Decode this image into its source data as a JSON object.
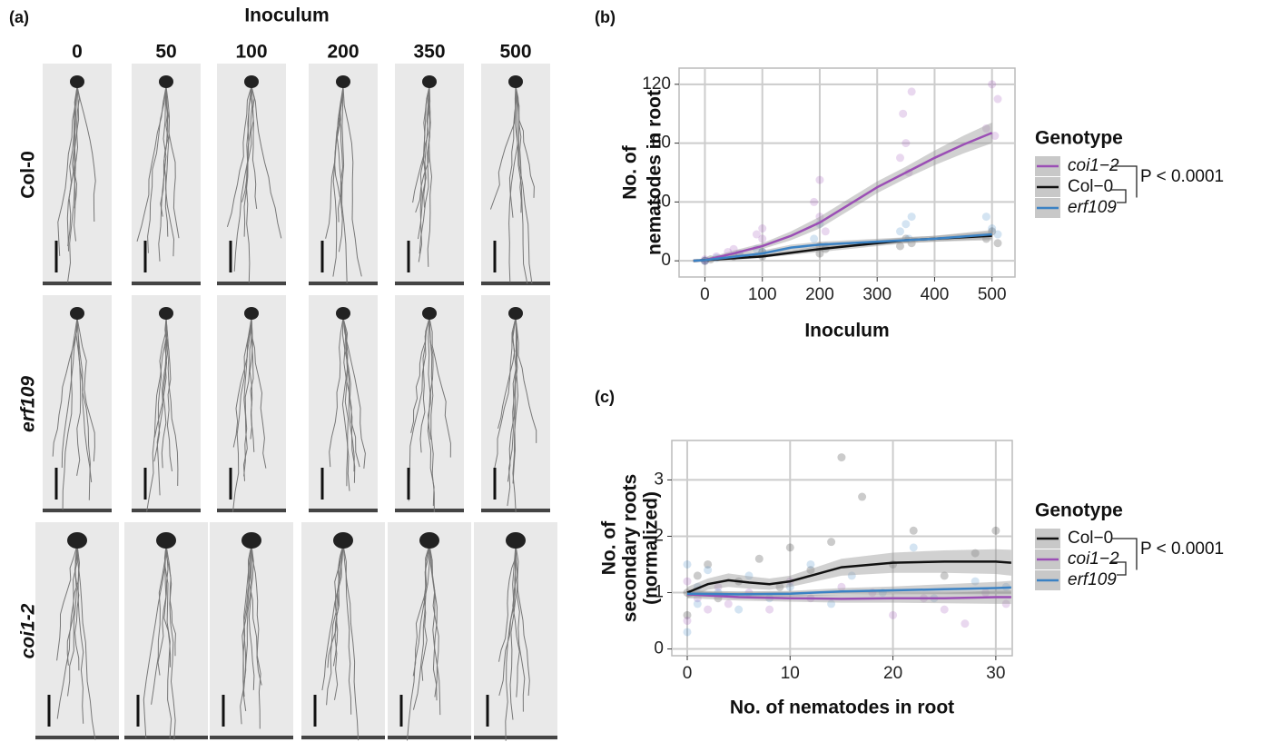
{
  "panel_a": {
    "panel_label": "(a)",
    "column_title": "Inoculum",
    "columns": [
      "0",
      "50",
      "100",
      "200",
      "350",
      "500"
    ],
    "rows": [
      "Col-0",
      "erf109",
      "coi1-2"
    ]
  },
  "chart_data": [
    {
      "type": "line",
      "panel_label": "(b)",
      "x_label": "Inoculum",
      "y_label": [
        "No. of",
        "nematodes in root"
      ],
      "xlim": [
        -45,
        540
      ],
      "xticks": [
        0,
        100,
        200,
        300,
        400,
        500
      ],
      "ylim": [
        -11,
        131
      ],
      "yticks": [
        0,
        40,
        80,
        120
      ],
      "grid": true,
      "legend_title": "Genotype",
      "annotations": [
        "P < 0.0001"
      ],
      "series": [
        {
          "name": "coi1−2",
          "color": "#9b4fb5",
          "italic": true,
          "x": [
            -20,
            0,
            50,
            100,
            150,
            200,
            250,
            300,
            350,
            400,
            450,
            500
          ],
          "values": [
            0,
            0.5,
            5,
            10,
            17,
            26,
            38,
            50,
            60,
            70,
            79,
            87
          ],
          "ci_lower": [
            -1,
            -0.5,
            3,
            8,
            14,
            22,
            34,
            46,
            56,
            65,
            73,
            80
          ],
          "ci_upper": [
            1,
            1.5,
            7,
            12,
            20,
            30,
            42,
            54,
            64,
            75,
            85,
            94
          ],
          "points": {
            "x": [
              0,
              0,
              20,
              40,
              50,
              60,
              90,
              100,
              100,
              190,
              200,
              200,
              210,
              340,
              345,
              350,
              355,
              360,
              490,
              500,
              505,
              510
            ],
            "y": [
              0,
              1,
              3,
              6,
              8,
              5,
              18,
              15,
              22,
              40,
              55,
              30,
              20,
              70,
              100,
              80,
              60,
              115,
              90,
              120,
              85,
              110
            ]
          }
        },
        {
          "name": "Col−0",
          "color": "#111111",
          "italic": false,
          "x": [
            -20,
            0,
            100,
            200,
            300,
            350,
            400,
            500
          ],
          "values": [
            0,
            0.5,
            3,
            8,
            12,
            14,
            15,
            17
          ],
          "ci_lower": [
            -1,
            -0.5,
            2,
            6,
            10,
            12,
            13,
            14
          ],
          "ci_upper": [
            1,
            1.5,
            4,
            10,
            14,
            16,
            17,
            20
          ],
          "points": {
            "x": [
              0,
              10,
              50,
              100,
              100,
              200,
              200,
              210,
              340,
              350,
              360,
              490,
              500,
              510
            ],
            "y": [
              0,
              1,
              3,
              3,
              6,
              5,
              10,
              8,
              10,
              15,
              12,
              15,
              20,
              12
            ]
          }
        },
        {
          "name": "erf109",
          "color": "#3b82c4",
          "italic": true,
          "x": [
            -20,
            0,
            100,
            150,
            200,
            300,
            350,
            400,
            500
          ],
          "values": [
            0,
            0.5,
            5,
            9,
            11,
            13,
            14,
            15,
            18
          ],
          "ci_lower": [
            -1,
            -0.5,
            3,
            7,
            9,
            11,
            12,
            13,
            15
          ],
          "ci_upper": [
            1,
            1.5,
            7,
            11,
            13,
            15,
            16,
            17,
            21
          ],
          "points": {
            "x": [
              0,
              20,
              60,
              90,
              100,
              190,
              200,
              210,
              340,
              350,
              355,
              360,
              490,
              500,
              510
            ],
            "y": [
              0,
              2,
              4,
              8,
              6,
              15,
              25,
              10,
              20,
              25,
              15,
              30,
              30,
              22,
              18
            ]
          }
        }
      ]
    },
    {
      "type": "line",
      "panel_label": "(c)",
      "x_label": "No. of nematodes in root",
      "y_label": [
        "No. of",
        "secondary roots",
        "(normalized)"
      ],
      "xlim": [
        -1.5,
        31.6
      ],
      "xticks": [
        0,
        10,
        20,
        30
      ],
      "ylim": [
        -0.12,
        3.7
      ],
      "yticks": [
        0,
        1,
        2,
        3
      ],
      "grid": true,
      "legend_title": "Genotype",
      "annotations": [
        "P < 0.0001"
      ],
      "series": [
        {
          "name": "Col−0",
          "color": "#111111",
          "italic": false,
          "x": [
            0,
            2,
            4,
            6,
            8,
            10,
            12,
            15,
            20,
            25,
            30,
            31.5
          ],
          "values": [
            1.0,
            1.15,
            1.22,
            1.18,
            1.15,
            1.2,
            1.3,
            1.45,
            1.53,
            1.55,
            1.55,
            1.53
          ],
          "ci_lower": [
            0.9,
            1.05,
            1.1,
            1.07,
            1.05,
            1.1,
            1.18,
            1.3,
            1.35,
            1.35,
            1.33,
            1.3
          ],
          "ci_upper": [
            1.1,
            1.25,
            1.34,
            1.29,
            1.25,
            1.3,
            1.42,
            1.6,
            1.71,
            1.75,
            1.77,
            1.76
          ],
          "points": {
            "x": [
              0,
              0,
              1,
              2,
              3,
              5,
              7,
              9,
              10,
              12,
              14,
              15,
              17,
              20,
              22,
              25,
              28,
              30
            ],
            "y": [
              1,
              0.6,
              1.3,
              1.5,
              0.9,
              1.2,
              1.6,
              1.1,
              1.8,
              1.4,
              1.9,
              3.4,
              2.7,
              1.5,
              2.1,
              1.3,
              1.7,
              2.1
            ]
          }
        },
        {
          "name": "coi1−2",
          "color": "#9b4fb5",
          "italic": true,
          "x": [
            0,
            5,
            10,
            15,
            20,
            25,
            30,
            31.5
          ],
          "values": [
            0.97,
            0.92,
            0.9,
            0.89,
            0.9,
            0.9,
            0.92,
            0.92
          ],
          "ci_lower": [
            0.9,
            0.86,
            0.84,
            0.82,
            0.82,
            0.81,
            0.8,
            0.8
          ],
          "ci_upper": [
            1.04,
            0.98,
            0.96,
            0.96,
            0.98,
            0.99,
            1.04,
            1.04
          ],
          "points": {
            "x": [
              0,
              0,
              1,
              2,
              3,
              4,
              6,
              8,
              10,
              12,
              15,
              18,
              20,
              23,
              25,
              27,
              29,
              31
            ],
            "y": [
              1.2,
              0.5,
              0.9,
              0.7,
              1.1,
              0.8,
              1.0,
              0.7,
              1.2,
              0.9,
              1.1,
              1.0,
              0.6,
              0.9,
              0.7,
              0.45,
              1.0,
              0.8
            ]
          }
        },
        {
          "name": "erf109",
          "color": "#3b82c4",
          "italic": true,
          "x": [
            0,
            5,
            10,
            15,
            20,
            25,
            30,
            31.5
          ],
          "values": [
            0.98,
            0.97,
            0.98,
            1.02,
            1.04,
            1.06,
            1.08,
            1.09
          ],
          "ci_lower": [
            0.92,
            0.92,
            0.93,
            0.96,
            0.97,
            0.97,
            0.97,
            0.97
          ],
          "ci_upper": [
            1.04,
            1.02,
            1.03,
            1.08,
            1.11,
            1.15,
            1.19,
            1.21
          ],
          "points": {
            "x": [
              0,
              0,
              1,
              1,
              2,
              3,
              5,
              6,
              8,
              10,
              12,
              14,
              16,
              19,
              22,
              24,
              28,
              31
            ],
            "y": [
              1.5,
              0.3,
              1.1,
              0.8,
              1.4,
              1.0,
              0.7,
              1.3,
              0.9,
              1.1,
              1.5,
              0.8,
              1.3,
              1.0,
              1.8,
              0.9,
              1.2,
              1.1
            ]
          }
        }
      ]
    }
  ]
}
